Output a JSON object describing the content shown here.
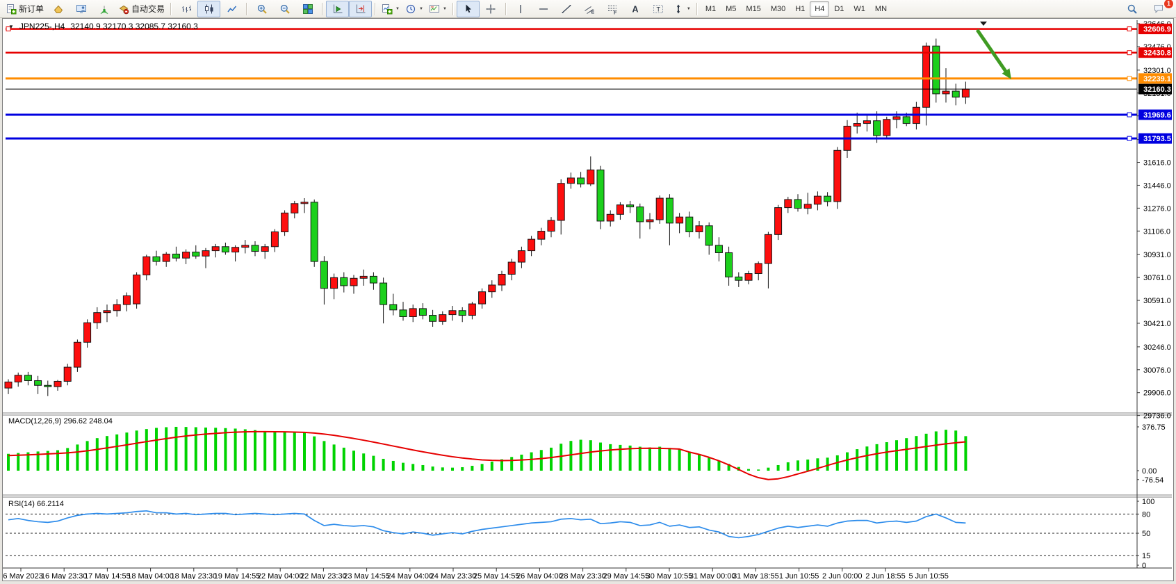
{
  "toolbar": {
    "buttons": [
      {
        "icon": "new-order-icon",
        "label": "新订单",
        "group": 1
      },
      {
        "icon": "new-chart-icon",
        "group": 1
      },
      {
        "icon": "profiles-icon",
        "group": 1
      },
      {
        "icon": "signals-icon",
        "group": 1
      },
      {
        "icon": "autotrading-icon",
        "label": "自动交易",
        "group": 1
      },
      {
        "icon": "bar-chart-icon",
        "group": 2
      },
      {
        "icon": "candlestick-icon",
        "group": 2,
        "active": true
      },
      {
        "icon": "line-chart-icon",
        "group": 2
      },
      {
        "icon": "zoom-in-icon",
        "group": 3
      },
      {
        "icon": "zoom-out-icon",
        "group": 3
      },
      {
        "icon": "tile-windows-icon",
        "group": 3
      },
      {
        "icon": "auto-scroll-icon",
        "group": 4,
        "active": true
      },
      {
        "icon": "chart-shift-icon",
        "group": 4,
        "active": true
      },
      {
        "icon": "indicators-icon",
        "group": 5,
        "dropdown": true
      },
      {
        "icon": "periods-icon",
        "group": 5,
        "dropdown": true
      },
      {
        "icon": "templates-icon",
        "group": 5,
        "dropdown": true
      },
      {
        "icon": "cursor-icon",
        "group": 6,
        "active": true
      },
      {
        "icon": "crosshair-icon",
        "group": 6
      },
      {
        "icon": "vertical-line-icon",
        "group": 7
      },
      {
        "icon": "horizontal-line-icon",
        "group": 7
      },
      {
        "icon": "trendline-icon",
        "group": 7
      },
      {
        "icon": "equidistant-channel-icon",
        "group": 7
      },
      {
        "icon": "fibonacci-icon",
        "group": 7
      },
      {
        "icon": "text-icon",
        "group": 7
      },
      {
        "icon": "text-label-icon",
        "group": 7
      },
      {
        "icon": "arrows-icon",
        "group": 7,
        "dropdown": true
      }
    ],
    "timeframes": {
      "items": [
        "M1",
        "M5",
        "M15",
        "M30",
        "H1",
        "H4",
        "D1",
        "W1",
        "MN"
      ],
      "active": "H4"
    },
    "notifications": {
      "count": "1"
    }
  },
  "chart_window": {
    "title": {
      "symbol_period": "JPN225-,H4",
      "quote": "32140.9 32170.3 32085.7 32160.3"
    }
  },
  "chart_data": [
    {
      "type": "candlestick",
      "symbol": "JPN225-",
      "period": "H4",
      "ohlc_header": {
        "open": "32140.9",
        "high": "32170.3",
        "low": "32085.7",
        "close": "32160.3"
      },
      "up_color": "#fd0e0e",
      "down_color": "#1cd01c",
      "wick_color": "#111111",
      "ylim": [
        29760,
        32672
      ],
      "y_ticks": [
        32646.0,
        32476.0,
        32301.0,
        32131.0,
        31961.0,
        31786.0,
        31616.0,
        31446.0,
        31276.0,
        31106.0,
        30931.0,
        30761.0,
        30591.0,
        30421.0,
        30246.0,
        30076.0,
        29906.0,
        29736.0
      ],
      "x_labels": [
        "16 May 2023",
        "16 May 23:30",
        "17 May 14:55",
        "18 May 04:00",
        "18 May 23:30",
        "19 May 14:55",
        "22 May 04:00",
        "22 May 23:30",
        "23 May 14:55",
        "24 May 04:00",
        "24 May 23:30",
        "25 May 14:55",
        "26 May 04:00",
        "28 May 23:30",
        "29 May 14:55",
        "30 May 10:55",
        "31 May 00:00",
        "31 May 18:55",
        "1 Jun 10:55",
        "2 Jun 00:00",
        "2 Jun 18:55",
        "5 Jun 10:55"
      ],
      "h_lines": [
        {
          "price": 32606.9,
          "label": "32606.9",
          "color": "#e60000",
          "width": 2.5,
          "left_handle": true
        },
        {
          "price": 32430.8,
          "label": "32430.8",
          "color": "#e60000",
          "width": 2.5
        },
        {
          "price": 32239.1,
          "label": "32239.1",
          "color": "#ff8c00",
          "width": 3
        },
        {
          "price": 31969.6,
          "label": "31969.6",
          "color": "#0000e0",
          "width": 3
        },
        {
          "price": 31793.5,
          "label": "31793.5",
          "color": "#0000e0",
          "width": 3
        }
      ],
      "bid_line": {
        "price": 32160.3,
        "label": "32160.3",
        "color": "#000000"
      },
      "annotations": {
        "trend_arrow": {
          "color": "#3f9b22",
          "from": [
            1402,
            16
          ],
          "to": [
            1444,
            77
          ]
        },
        "scroll_marker": {
          "color": "#1a1a1a",
          "x": 1411,
          "y": 4
        }
      },
      "candles": [
        [
          29940,
          30005,
          29895,
          29985
        ],
        [
          29985,
          30055,
          29950,
          30035
        ],
        [
          30035,
          30060,
          29960,
          29995
        ],
        [
          29995,
          30030,
          29895,
          29960
        ],
        [
          29960,
          29995,
          29880,
          29950
        ],
        [
          29950,
          30000,
          29920,
          29990
        ],
        [
          29990,
          30120,
          29960,
          30095
        ],
        [
          30095,
          30300,
          30060,
          30280
        ],
        [
          30280,
          30450,
          30240,
          30425
        ],
        [
          30425,
          30540,
          30380,
          30500
        ],
        [
          30500,
          30560,
          30430,
          30515
        ],
        [
          30515,
          30600,
          30470,
          30560
        ],
        [
          30560,
          30650,
          30510,
          30625
        ],
        [
          30565,
          30800,
          30530,
          30780
        ],
        [
          30780,
          30930,
          30740,
          30915
        ],
        [
          30915,
          30960,
          30850,
          30880
        ],
        [
          30880,
          30950,
          30840,
          30935
        ],
        [
          30935,
          30990,
          30880,
          30905
        ],
        [
          30905,
          30970,
          30860,
          30950
        ],
        [
          30950,
          31000,
          30900,
          30920
        ],
        [
          30920,
          30980,
          30830,
          30960
        ],
        [
          30960,
          31010,
          30910,
          30990
        ],
        [
          30990,
          31020,
          30930,
          30950
        ],
        [
          30950,
          31000,
          30880,
          30985
        ],
        [
          30985,
          31040,
          30940,
          31000
        ],
        [
          31000,
          31030,
          30920,
          30955
        ],
        [
          30955,
          31010,
          30900,
          30990
        ],
        [
          30990,
          31120,
          30950,
          31100
        ],
        [
          31100,
          31260,
          31070,
          31240
        ],
        [
          31240,
          31330,
          31200,
          31310
        ],
        [
          31310,
          31350,
          31240,
          31320
        ],
        [
          31320,
          31340,
          30840,
          30880
        ],
        [
          30880,
          30920,
          30560,
          30680
        ],
        [
          30680,
          30790,
          30600,
          30760
        ],
        [
          30760,
          30800,
          30650,
          30700
        ],
        [
          30700,
          30780,
          30640,
          30755
        ],
        [
          30755,
          30820,
          30700,
          30770
        ],
        [
          30770,
          30800,
          30670,
          30720
        ],
        [
          30720,
          30760,
          30420,
          30560
        ],
        [
          30560,
          30640,
          30480,
          30520
        ],
        [
          30520,
          30580,
          30440,
          30470
        ],
        [
          30470,
          30560,
          30430,
          30530
        ],
        [
          30530,
          30570,
          30450,
          30480
        ],
        [
          30480,
          30520,
          30395,
          30435
        ],
        [
          30435,
          30510,
          30410,
          30485
        ],
        [
          30485,
          30550,
          30440,
          30515
        ],
        [
          30515,
          30540,
          30430,
          30480
        ],
        [
          30480,
          30580,
          30450,
          30565
        ],
        [
          30565,
          30680,
          30530,
          30655
        ],
        [
          30655,
          30740,
          30610,
          30705
        ],
        [
          30705,
          30810,
          30660,
          30785
        ],
        [
          30785,
          30900,
          30740,
          30875
        ],
        [
          30875,
          30990,
          30830,
          30960
        ],
        [
          30960,
          31070,
          30920,
          31045
        ],
        [
          31045,
          31130,
          31000,
          31105
        ],
        [
          31105,
          31210,
          31060,
          31185
        ],
        [
          31185,
          31490,
          31080,
          31460
        ],
        [
          31460,
          31540,
          31420,
          31500
        ],
        [
          31500,
          31545,
          31430,
          31455
        ],
        [
          31455,
          31660,
          31440,
          31560
        ],
        [
          31560,
          31590,
          31120,
          31180
        ],
        [
          31180,
          31260,
          31140,
          31230
        ],
        [
          31230,
          31320,
          31190,
          31300
        ],
        [
          31300,
          31330,
          31240,
          31285
        ],
        [
          31285,
          31310,
          31050,
          31175
        ],
        [
          31175,
          31240,
          31120,
          31190
        ],
        [
          31190,
          31370,
          31160,
          31350
        ],
        [
          31350,
          31380,
          31000,
          31165
        ],
        [
          31165,
          31240,
          31090,
          31210
        ],
        [
          31210,
          31250,
          31060,
          31100
        ],
        [
          31100,
          31180,
          31050,
          31145
        ],
        [
          31145,
          31170,
          30930,
          31000
        ],
        [
          31000,
          31060,
          30880,
          30945
        ],
        [
          30945,
          30990,
          30700,
          30765
        ],
        [
          30765,
          30800,
          30690,
          30740
        ],
        [
          30740,
          30810,
          30710,
          30790
        ],
        [
          30790,
          30880,
          30740,
          30865
        ],
        [
          30865,
          31100,
          30680,
          31080
        ],
        [
          31080,
          31300,
          31040,
          31280
        ],
        [
          31280,
          31360,
          31240,
          31340
        ],
        [
          31340,
          31380,
          31250,
          31275
        ],
        [
          31275,
          31390,
          31230,
          31305
        ],
        [
          31305,
          31400,
          31260,
          31365
        ],
        [
          31365,
          31395,
          31290,
          31325
        ],
        [
          31325,
          31730,
          31270,
          31705
        ],
        [
          31705,
          31930,
          31650,
          31885
        ],
        [
          31885,
          31985,
          31830,
          31905
        ],
        [
          31905,
          31975,
          31845,
          31925
        ],
        [
          31925,
          31995,
          31760,
          31815
        ],
        [
          31815,
          31955,
          31790,
          31935
        ],
        [
          31935,
          31995,
          31870,
          31955
        ],
        [
          31955,
          31985,
          31885,
          31905
        ],
        [
          31905,
          32065,
          31860,
          32025
        ],
        [
          32025,
          32505,
          31890,
          32480
        ],
        [
          32480,
          32535,
          32060,
          32125
        ],
        [
          32125,
          32315,
          32060,
          32145
        ],
        [
          32145,
          32200,
          32040,
          32100
        ],
        [
          32100,
          32215,
          32050,
          32160
        ]
      ]
    },
    {
      "type": "bar+line",
      "label": "MACD(12,26,9)",
      "values": "296.62 248.04",
      "histogram_color": "#00d300",
      "signal_color": "#e60000",
      "y_labels": [
        {
          "value": 376.75,
          "label": "376.75"
        },
        {
          "value": 0,
          "label": "0.00"
        },
        {
          "value": -76.54,
          "label": "-76.54"
        }
      ],
      "histogram": [
        145,
        152,
        158,
        165,
        170,
        176,
        195,
        225,
        255,
        280,
        298,
        312,
        328,
        345,
        358,
        368,
        374,
        377,
        376,
        374,
        371,
        369,
        366,
        362,
        356,
        349,
        341,
        338,
        336,
        333,
        328,
        295,
        255,
        225,
        198,
        172,
        148,
        128,
        102,
        84,
        68,
        58,
        48,
        36,
        28,
        26,
        30,
        42,
        58,
        78,
        98,
        118,
        138,
        158,
        178,
        198,
        232,
        256,
        266,
        262,
        242,
        228,
        222,
        216,
        206,
        200,
        206,
        196,
        186,
        158,
        138,
        112,
        86,
        58,
        32,
        14,
        10,
        26,
        48,
        72,
        88,
        96,
        106,
        112,
        132,
        158,
        185,
        208,
        228,
        245,
        262,
        280,
        298,
        318,
        338,
        352,
        345,
        297
      ],
      "signal": [
        130,
        133,
        136,
        140,
        144,
        148,
        153,
        161,
        171,
        183,
        196,
        209,
        222,
        236,
        250,
        263,
        276,
        288,
        298,
        307,
        315,
        321,
        327,
        331,
        334,
        336,
        336,
        335,
        334,
        332,
        330,
        324,
        315,
        304,
        291,
        277,
        262,
        246,
        229,
        212,
        195,
        178,
        162,
        147,
        133,
        120,
        109,
        100,
        93,
        89,
        87,
        88,
        92,
        97,
        104,
        113,
        124,
        136,
        148,
        160,
        170,
        178,
        184,
        189,
        192,
        193,
        192,
        190,
        186,
        160,
        140,
        115,
        85,
        50,
        10,
        -30,
        -60,
        -76,
        -70,
        -52,
        -28,
        -5,
        20,
        45,
        70,
        92,
        112,
        130,
        146,
        160,
        172,
        184,
        196,
        208,
        220,
        231,
        240,
        248
      ]
    },
    {
      "type": "line",
      "label": "RSI(14)",
      "values": "66.2114",
      "line_color": "#2d8ceb",
      "levels": [
        80,
        50,
        15
      ],
      "y_labels": [
        {
          "value": 100,
          "label": "100"
        },
        {
          "value": 80,
          "label": "80"
        },
        {
          "value": 50,
          "label": "50"
        },
        {
          "value": 15,
          "label": "15"
        },
        {
          "value": 0,
          "label": "0"
        }
      ],
      "line": [
        71,
        73,
        70,
        68,
        67,
        69,
        74,
        78,
        80,
        81,
        80,
        81,
        82,
        84,
        85,
        82,
        82,
        80,
        81,
        79,
        80,
        81,
        81,
        79,
        80,
        81,
        80,
        79,
        80,
        81,
        80,
        70,
        62,
        64,
        62,
        61,
        62,
        60,
        54,
        51,
        49,
        52,
        50,
        47,
        49,
        51,
        49,
        53,
        56,
        58,
        60,
        62,
        64,
        66,
        67,
        68,
        72,
        73,
        71,
        72,
        65,
        66,
        68,
        67,
        62,
        63,
        67,
        61,
        63,
        59,
        60,
        55,
        52,
        45,
        43,
        45,
        48,
        53,
        58,
        61,
        59,
        61,
        63,
        61,
        66,
        69,
        70,
        70,
        66,
        68,
        69,
        67,
        69,
        76,
        80,
        74,
        67,
        66
      ]
    }
  ]
}
